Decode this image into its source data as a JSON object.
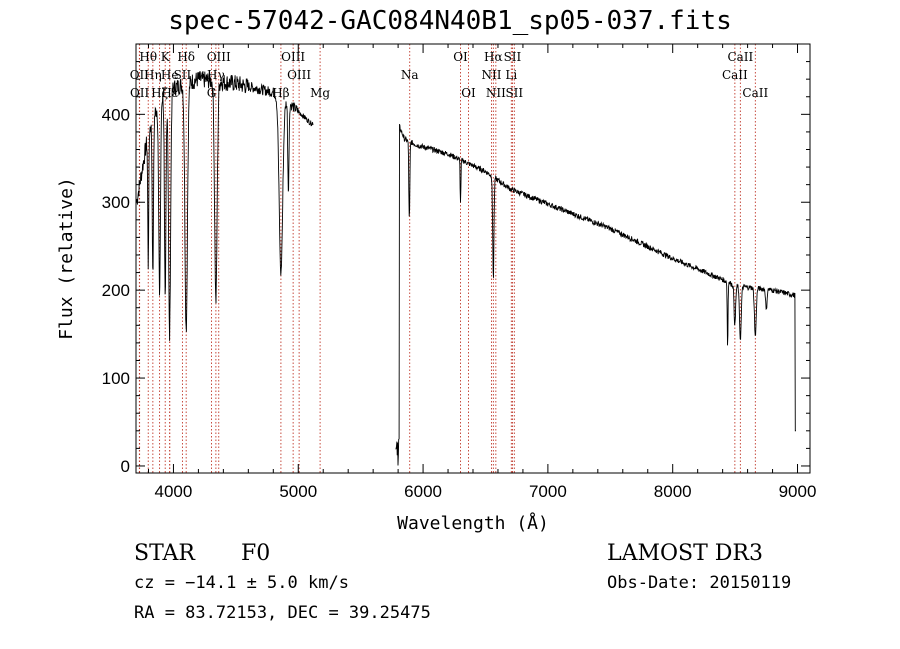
{
  "title": "spec-57042-GAC084N40B1_sp05-037.fits",
  "info": {
    "object_class": "STAR",
    "subclass": "F0",
    "redshift": "cz = −14.1 ± 5.0 km/s",
    "coords": "RA =  83.72153, DEC =  39.25475",
    "survey": "LAMOST DR3",
    "obs_date": "Obs-Date: 20150119"
  },
  "chart_data": {
    "type": "line",
    "xlabel": "Wavelength (Å)",
    "ylabel": "Flux (relative)",
    "xlim": [
      3700,
      9100
    ],
    "ylim": [
      -8,
      480
    ],
    "xticks": [
      4000,
      5000,
      6000,
      7000,
      8000,
      9000
    ],
    "yticks": [
      0,
      100,
      200,
      300,
      400
    ],
    "xtick_labels": [
      "4000",
      "5000",
      "6000",
      "7000",
      "8000",
      "9000"
    ],
    "ytick_labels": [
      "0",
      "100",
      "200",
      "300",
      "400"
    ],
    "line_color": "#000000",
    "marker_color": "#c0392b",
    "gap": [
      5120,
      5780
    ],
    "continuum": [
      [
        3705,
        300
      ],
      [
        3800,
        380
      ],
      [
        3900,
        420
      ],
      [
        4000,
        430
      ],
      [
        4200,
        440
      ],
      [
        4500,
        435
      ],
      [
        4800,
        425
      ],
      [
        4950,
        410
      ],
      [
        5100,
        390
      ],
      [
        5800,
        390
      ],
      [
        5850,
        372
      ],
      [
        5950,
        365
      ],
      [
        6200,
        355
      ],
      [
        6500,
        335
      ],
      [
        6700,
        315
      ],
      [
        7000,
        298
      ],
      [
        7500,
        270
      ],
      [
        8000,
        236
      ],
      [
        8400,
        212
      ],
      [
        8500,
        205
      ],
      [
        8800,
        200
      ],
      [
        8985,
        194
      ]
    ],
    "absorption_lines": [
      {
        "center": 3798,
        "depth": 150,
        "width": 4
      },
      {
        "center": 3835,
        "depth": 180,
        "width": 5
      },
      {
        "center": 3889,
        "depth": 220,
        "width": 7
      },
      {
        "center": 3934,
        "depth": 240,
        "width": 6
      },
      {
        "center": 3969,
        "depth": 280,
        "width": 8
      },
      {
        "center": 4102,
        "depth": 280,
        "width": 10
      },
      {
        "center": 4340,
        "depth": 250,
        "width": 10
      },
      {
        "center": 4861,
        "depth": 200,
        "width": 14
      },
      {
        "center": 4921,
        "depth": 100,
        "width": 5
      },
      {
        "center": 5890,
        "depth": 90,
        "width": 4
      },
      {
        "center": 6300,
        "depth": 50,
        "width": 3
      },
      {
        "center": 6563,
        "depth": 115,
        "width": 5
      },
      {
        "center": 8440,
        "depth": 75,
        "width": 3
      },
      {
        "center": 8498,
        "depth": 45,
        "width": 6
      },
      {
        "center": 8542,
        "depth": 60,
        "width": 7
      },
      {
        "center": 8662,
        "depth": 55,
        "width": 7
      },
      {
        "center": 8750,
        "depth": 25,
        "width": 5
      }
    ],
    "line_markers": [
      {
        "label": "Hθ",
        "wavelength": 3798,
        "row": 1
      },
      {
        "label": "OII",
        "wavelength": 3727,
        "row": 2
      },
      {
        "label": "OII",
        "wavelength": 3729,
        "row": 3
      },
      {
        "label": "K",
        "wavelength": 3934,
        "row": 1
      },
      {
        "label": "Hη",
        "wavelength": 3835,
        "row": 2
      },
      {
        "label": "Hζ",
        "wavelength": 3889,
        "row": 3
      },
      {
        "label": "He",
        "wavelength": 3970,
        "row": 2
      },
      {
        "label": "Hε",
        "wavelength": 3970,
        "row": 3
      },
      {
        "label": "Hδ",
        "wavelength": 4102,
        "row": 1
      },
      {
        "label": "SII",
        "wavelength": 4072,
        "row": 2
      },
      {
        "label": "OIII",
        "wavelength": 4363,
        "row": 1
      },
      {
        "label": "Hγ",
        "wavelength": 4340,
        "row": 2
      },
      {
        "label": "G",
        "wavelength": 4305,
        "row": 3
      },
      {
        "label": "Hβ",
        "wavelength": 4861,
        "row": 3
      },
      {
        "label": "OIII",
        "wavelength": 4959,
        "row": 1
      },
      {
        "label": "OIII",
        "wavelength": 5007,
        "row": 2
      },
      {
        "label": "Mg",
        "wavelength": 5175,
        "row": 3
      },
      {
        "label": "Na",
        "wavelength": 5893,
        "row": 2
      },
      {
        "label": "OI",
        "wavelength": 6300,
        "row": 1
      },
      {
        "label": "OI",
        "wavelength": 6364,
        "row": 3
      },
      {
        "label": "Hα",
        "wavelength": 6563,
        "row": 1
      },
      {
        "label": "NII",
        "wavelength": 6548,
        "row": 2
      },
      {
        "label": "NII",
        "wavelength": 6583,
        "row": 3
      },
      {
        "label": "SII",
        "wavelength": 6716,
        "row": 1
      },
      {
        "label": "Li",
        "wavelength": 6707,
        "row": 2
      },
      {
        "label": "SII",
        "wavelength": 6731,
        "row": 3
      },
      {
        "label": "CaII",
        "wavelength": 8542,
        "row": 1
      },
      {
        "label": "CaII",
        "wavelength": 8498,
        "row": 2
      },
      {
        "label": "CaII",
        "wavelength": 8662,
        "row": 3
      }
    ]
  }
}
